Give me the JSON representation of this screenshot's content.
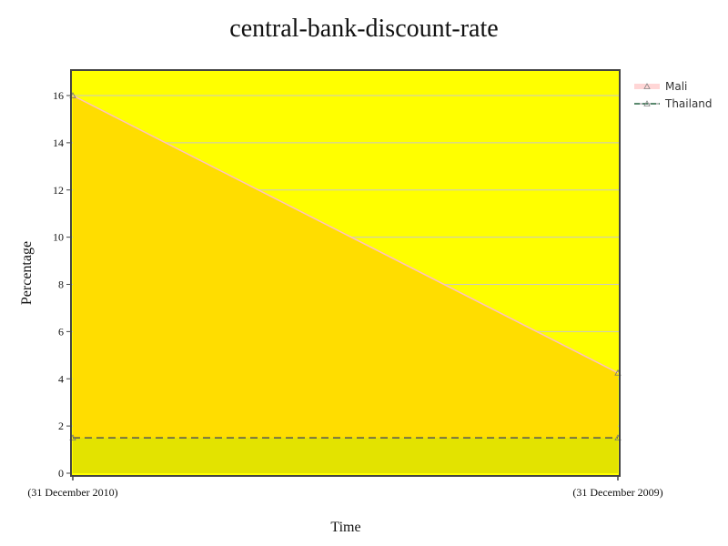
{
  "chart_data": {
    "type": "area",
    "title": "central-bank-discount-rate",
    "xlabel": "Time",
    "ylabel": "Percentage",
    "categories": [
      "(31 December 2010)",
      "(31 December 2009)"
    ],
    "ylim": [
      0,
      17
    ],
    "yticks": [
      0,
      2,
      4,
      6,
      8,
      10,
      12,
      14,
      16
    ],
    "grid": true,
    "legend_position": "right",
    "series": [
      {
        "name": "Mali",
        "values": [
          16,
          4.25
        ],
        "color": "#ffc0c0",
        "marker": "triangle"
      },
      {
        "name": "Thailand",
        "values": [
          1.5,
          1.5
        ],
        "color": "#555555",
        "dash": true,
        "marker": "triangle"
      }
    ],
    "colors": {
      "plot_background": "#ffff00",
      "mali_fill": "#ffdd00",
      "thailand_fill": "#e3e300",
      "legend_thailand_line": "#2e8b57"
    }
  }
}
